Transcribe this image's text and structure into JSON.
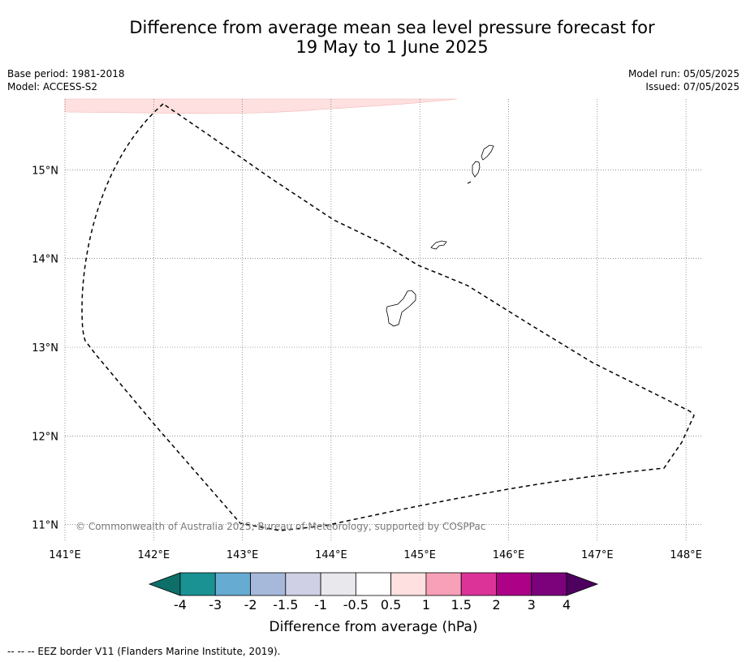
{
  "title_line1": "Difference from average mean sea level pressure forecast for",
  "title_line2": "19 May to 1 June 2025",
  "meta_left": {
    "base_period": "Base period: 1981-2018",
    "model": "Model: ACCESS-S2"
  },
  "meta_right": {
    "model_run": "Model run: 05/05/2025",
    "issued": "Issued: 07/05/2025"
  },
  "map": {
    "lon_range": [
      141,
      148.2
    ],
    "lat_range": [
      10.8,
      15.8
    ],
    "lon_ticks": [
      141,
      142,
      143,
      144,
      145,
      146,
      147,
      148
    ],
    "lat_ticks": [
      11,
      12,
      13,
      14,
      15
    ],
    "lon_tick_labels": [
      "141°E",
      "142°E",
      "143°E",
      "144°E",
      "145°E",
      "146°E",
      "147°E",
      "148°E"
    ],
    "lat_tick_labels": [
      "11°N",
      "12°N",
      "13°N",
      "14°N",
      "15°N"
    ],
    "gridlines": true,
    "shading_color": "#fde0df",
    "copyright": "© Commonwealth of Australia 2025, Bureau of Meteorology, supported by COSPPac"
  },
  "colorbar": {
    "colors": [
      "#0e6f69",
      "#1a9193",
      "#66abd2",
      "#a6b9da",
      "#cfcfe6",
      "#e9e8ed",
      "#ffffff",
      "#fde0df",
      "#f8a0b8",
      "#dc3399",
      "#ad0187",
      "#7b027b",
      "#4d005f"
    ],
    "tick_labels": [
      "-4",
      "-3",
      "-2",
      "-1.5",
      "-1",
      "-0.5",
      "0.5",
      "1",
      "1.5",
      "2",
      "3",
      "4"
    ],
    "label": "Difference from average (hPa)"
  },
  "footer": "--  --  -- EEZ border V11 (Flanders Marine Institute, 2019)."
}
